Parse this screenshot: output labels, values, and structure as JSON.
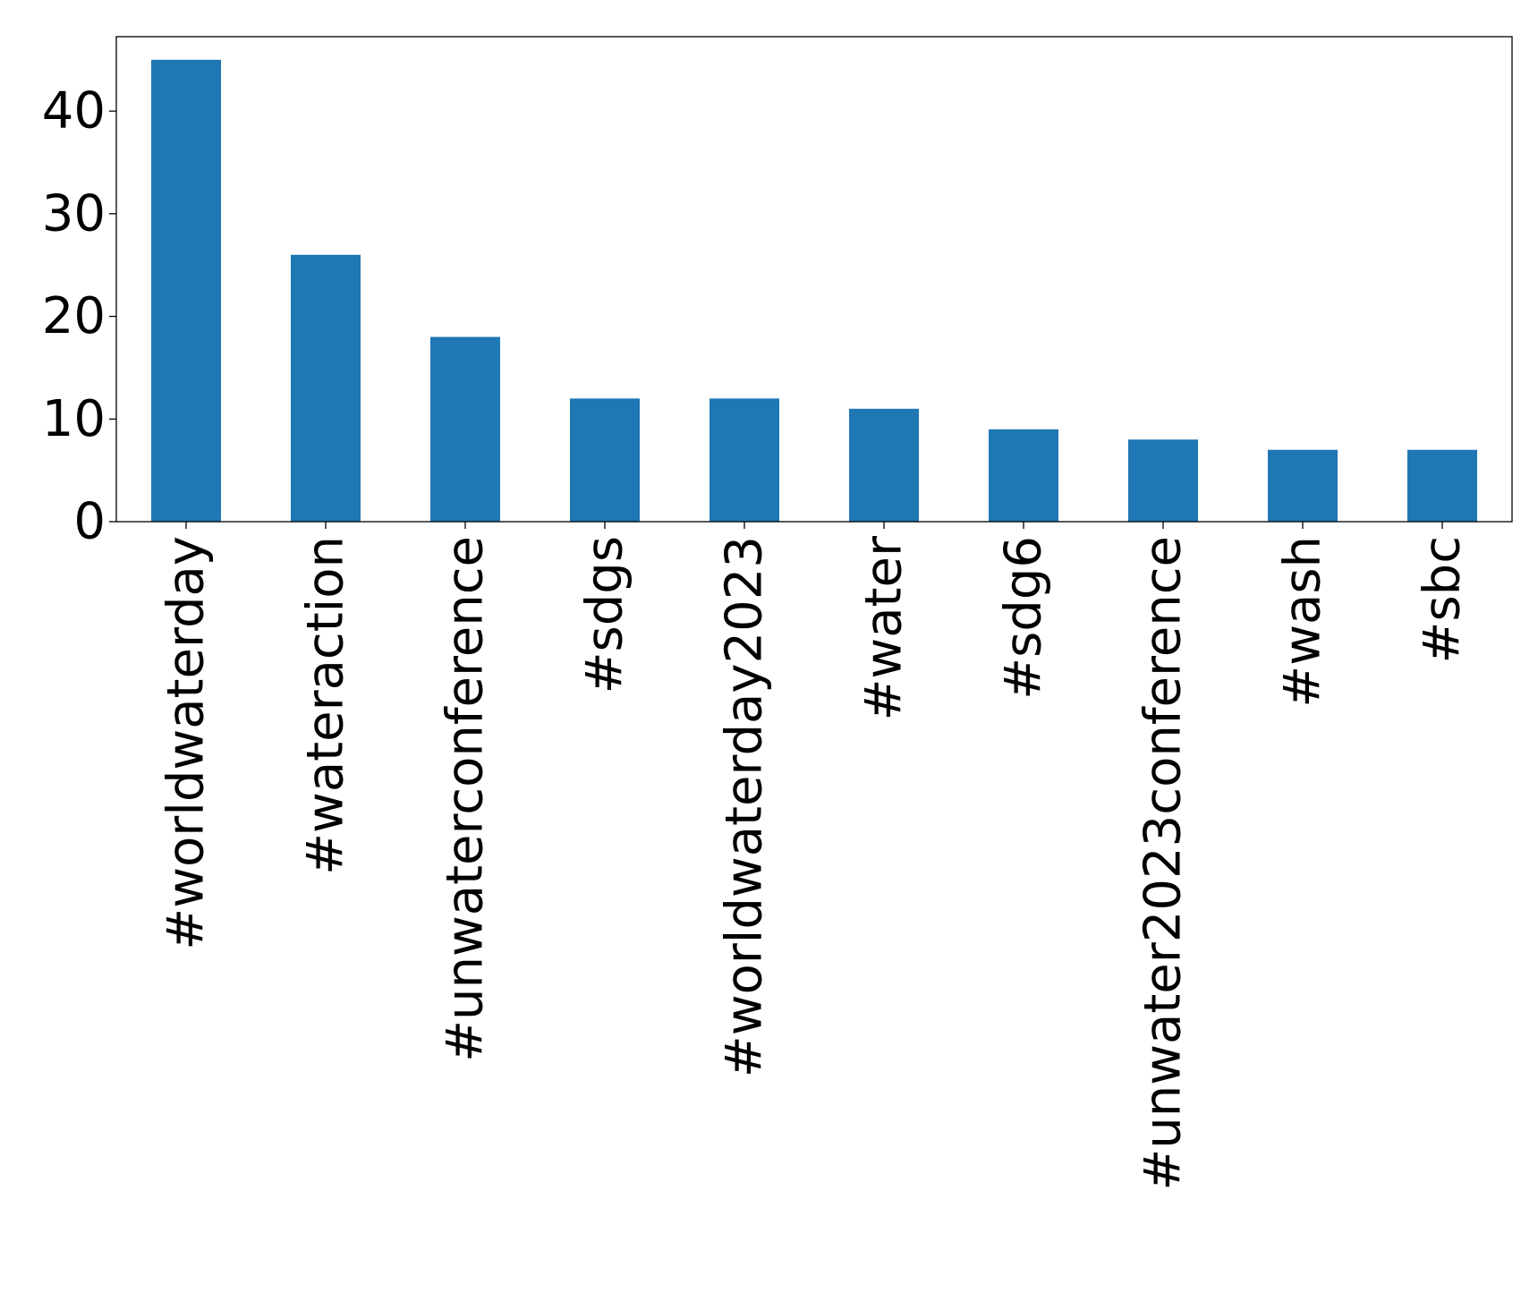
{
  "chart_data": {
    "type": "bar",
    "categories": [
      "#worldwaterday",
      "#wateraction",
      "#unwaterconference",
      "#sdgs",
      "#worldwaterday2023",
      "#water",
      "#sdg6",
      "#unwater2023conference",
      "#wash",
      "#sbc"
    ],
    "values": [
      45,
      26,
      18,
      12,
      12,
      11,
      9,
      8,
      7,
      7
    ],
    "yticks": [
      "0",
      "10",
      "20",
      "30",
      "40"
    ],
    "ylim": [
      0,
      47.25
    ],
    "grid": false,
    "legend": "none",
    "colors": {
      "bar": "#1f77b4",
      "axis": "#000000",
      "background": "#ffffff"
    }
  }
}
